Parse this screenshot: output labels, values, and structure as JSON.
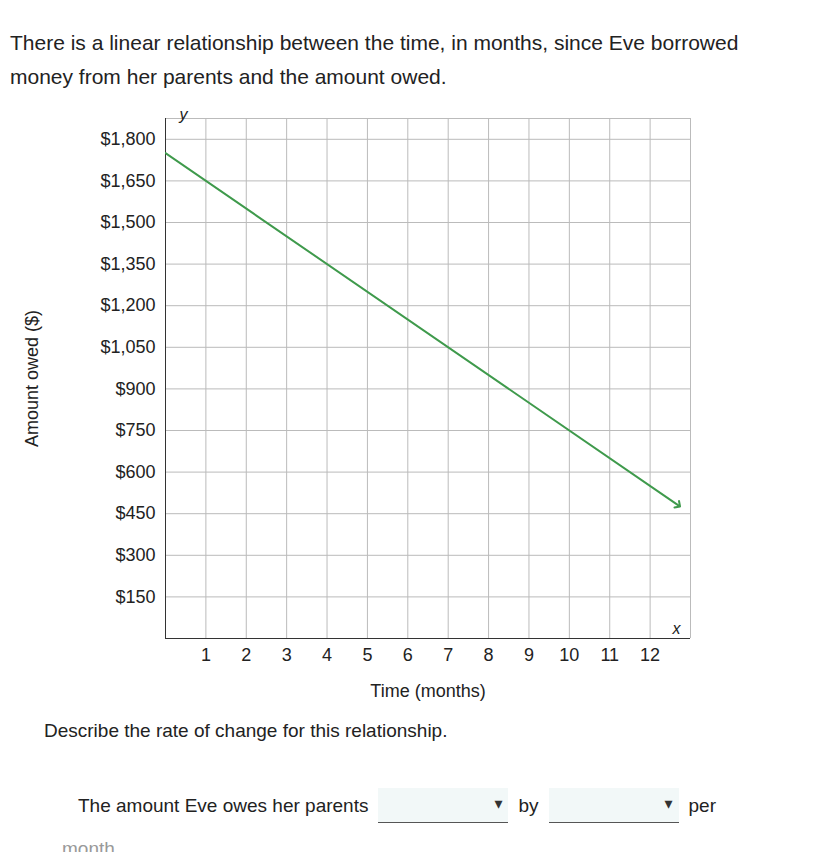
{
  "intro": "There is a linear relationship between the time, in months, since Eve borrowed money from her parents and the amount owed.",
  "chart_data": {
    "type": "line",
    "x_label": "Time (months)",
    "y_label": "Amount owed ($)",
    "axis_letters": {
      "x": "x",
      "y": "y"
    },
    "x": [
      0,
      12.7
    ],
    "series": [
      {
        "name": "Amount owed",
        "color": "#3f9a4c",
        "values": [
          1750,
          480
        ],
        "marker": "arrow"
      }
    ],
    "xlim": [
      0,
      13
    ],
    "ylim": [
      0,
      1875
    ],
    "xticks": [
      1,
      2,
      3,
      4,
      5,
      6,
      7,
      8,
      9,
      10,
      11,
      12
    ],
    "yticks": [
      {
        "value": 150,
        "label": "$150"
      },
      {
        "value": 300,
        "label": "$300"
      },
      {
        "value": 450,
        "label": "$450"
      },
      {
        "value": 600,
        "label": "$600"
      },
      {
        "value": 750,
        "label": "$750"
      },
      {
        "value": 900,
        "label": "$900"
      },
      {
        "value": 1050,
        "label": "$1,050"
      },
      {
        "value": 1200,
        "label": "$1,200"
      },
      {
        "value": 1350,
        "label": "$1,350"
      },
      {
        "value": 1500,
        "label": "$1,500"
      },
      {
        "value": 1650,
        "label": "$1,650"
      },
      {
        "value": 1800,
        "label": "$1,800"
      }
    ],
    "grid": true
  },
  "question": "Describe the rate of change for this relationship.",
  "sentence": [
    "The amount Eve owes her parents",
    "by",
    "per",
    "month"
  ]
}
